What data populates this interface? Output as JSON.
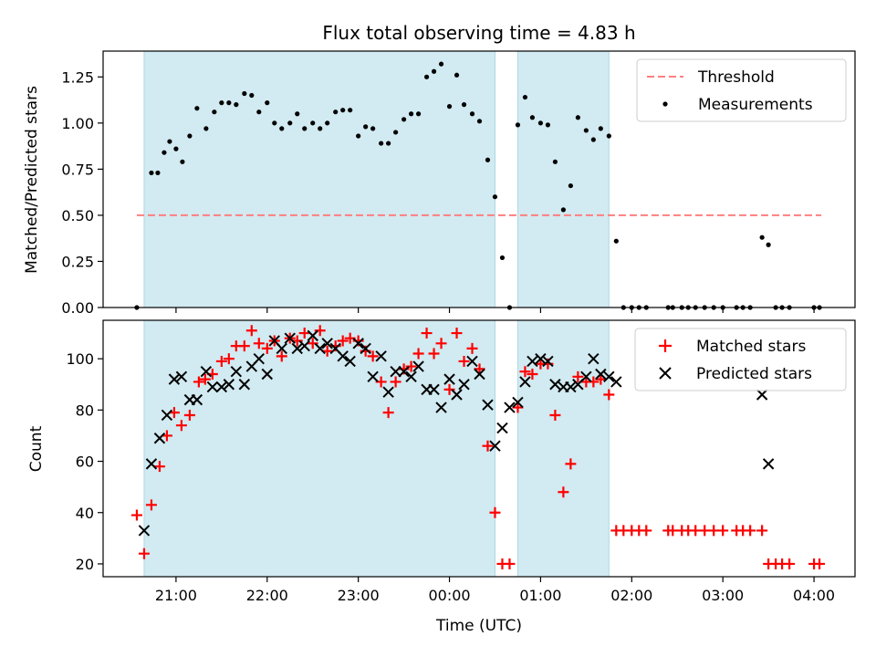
{
  "chart_data": [
    {
      "type": "scatter",
      "title": "Flux total observing time = 4.83 h",
      "xlabel": "",
      "ylabel": "Matched/Predicted stars",
      "ylim": [
        0,
        1.39
      ],
      "yticks": [
        0,
        0.25,
        0.5,
        0.75,
        1.0,
        1.25
      ],
      "ytick_labels": [
        "0.00",
        "0.25",
        "0.50",
        "0.75",
        "1.00",
        "1.25"
      ],
      "x_unit": "hours since 20:00 UTC",
      "xlim": [
        0.2,
        8.45
      ],
      "legend_position": "upper right",
      "shaded_intervals": [
        [
          0.65,
          4.5
        ],
        [
          4.75,
          5.75
        ]
      ],
      "shade_color": "#add8e6",
      "threshold": {
        "name": "Threshold",
        "y": 0.5,
        "x_range": [
          0.57,
          8.08
        ],
        "color": "#ff7f7f"
      },
      "series": [
        {
          "name": "Measurements",
          "color": "#000000",
          "x": [
            0.57,
            0.73,
            0.8,
            0.87,
            0.93,
            1.0,
            1.07,
            1.15,
            1.23,
            1.33,
            1.42,
            1.5,
            1.58,
            1.66,
            1.75,
            1.83,
            1.91,
            2.0,
            2.08,
            2.16,
            2.25,
            2.33,
            2.41,
            2.5,
            2.58,
            2.66,
            2.75,
            2.83,
            2.91,
            3.0,
            3.08,
            3.16,
            3.25,
            3.33,
            3.41,
            3.5,
            3.58,
            3.66,
            3.75,
            3.83,
            3.91,
            4.0,
            4.08,
            4.16,
            4.25,
            4.33,
            4.42,
            4.5,
            4.58,
            4.66,
            4.75,
            4.83,
            4.91,
            5.0,
            5.08,
            5.16,
            5.25,
            5.33,
            5.41,
            5.5,
            5.58,
            5.66,
            5.75,
            5.83,
            5.91,
            6.0,
            6.08,
            6.16,
            6.4,
            6.45,
            6.55,
            6.62,
            6.7,
            6.8,
            6.9,
            7.0,
            7.15,
            7.22,
            7.3,
            7.43,
            7.5,
            7.58,
            7.65,
            7.73,
            8.0,
            8.06
          ],
          "y": [
            0.0,
            0.73,
            0.73,
            0.84,
            0.9,
            0.86,
            0.79,
            0.93,
            1.08,
            0.97,
            1.06,
            1.11,
            1.11,
            1.1,
            1.16,
            1.15,
            1.06,
            1.11,
            1.0,
            0.97,
            1.0,
            1.05,
            0.97,
            1.0,
            0.97,
            1.0,
            1.06,
            1.07,
            1.07,
            0.93,
            0.98,
            0.97,
            0.89,
            0.89,
            0.95,
            1.02,
            1.05,
            1.05,
            1.25,
            1.28,
            1.32,
            1.09,
            1.26,
            1.1,
            1.05,
            1.01,
            0.8,
            0.6,
            0.27,
            0.0,
            0.99,
            1.14,
            1.03,
            1.0,
            0.99,
            0.79,
            0.53,
            0.66,
            1.03,
            0.96,
            0.91,
            0.97,
            0.93,
            0.36,
            0.0,
            0.0,
            0.0,
            0.0,
            0.0,
            0.0,
            0.0,
            0.0,
            0.0,
            0.0,
            0.0,
            0.0,
            0.0,
            0.0,
            0.0,
            0.38,
            0.34,
            0.0,
            0.0,
            0.0,
            0.0,
            0.0
          ]
        }
      ]
    },
    {
      "type": "scatter",
      "title": "",
      "xlabel": "Time (UTC)",
      "ylabel": "Count",
      "ylim": [
        15,
        115
      ],
      "yticks": [
        20,
        40,
        60,
        80,
        100
      ],
      "ytick_labels": [
        "20",
        "40",
        "60",
        "80",
        "100"
      ],
      "x_unit": "hours since 20:00 UTC",
      "xlim": [
        0.2,
        8.45
      ],
      "xticks": [
        1,
        2,
        3,
        4,
        5,
        6,
        7,
        8
      ],
      "xtick_labels": [
        "21:00",
        "22:00",
        "23:00",
        "00:00",
        "01:00",
        "02:00",
        "03:00",
        "04:00"
      ],
      "legend_position": "upper right",
      "shaded_intervals": [
        [
          0.65,
          4.5
        ],
        [
          4.75,
          5.75
        ]
      ],
      "shade_color": "#add8e6",
      "series": [
        {
          "name": "Matched stars",
          "color": "#ff0000",
          "marker": "+",
          "x": [
            0.57,
            0.65,
            0.73,
            0.82,
            0.9,
            0.98,
            1.06,
            1.15,
            1.25,
            1.32,
            1.4,
            1.5,
            1.58,
            1.66,
            1.75,
            1.83,
            1.91,
            2.0,
            2.08,
            2.16,
            2.25,
            2.33,
            2.41,
            2.5,
            2.58,
            2.66,
            2.75,
            2.83,
            2.91,
            3.0,
            3.08,
            3.16,
            3.25,
            3.33,
            3.41,
            3.5,
            3.58,
            3.66,
            3.75,
            3.83,
            3.91,
            4.0,
            4.08,
            4.16,
            4.25,
            4.33,
            4.42,
            4.5,
            4.58,
            4.66,
            4.75,
            4.83,
            4.91,
            5.0,
            5.08,
            5.16,
            5.25,
            5.33,
            5.41,
            5.5,
            5.58,
            5.66,
            5.75,
            5.83,
            5.91,
            6.0,
            6.08,
            6.16,
            6.4,
            6.45,
            6.55,
            6.62,
            6.7,
            6.8,
            6.9,
            7.0,
            7.15,
            7.22,
            7.3,
            7.43,
            7.5,
            7.58,
            7.65,
            7.73,
            8.0,
            8.06
          ],
          "y": [
            39,
            24,
            43,
            58,
            70,
            79,
            74,
            78,
            91,
            92,
            94,
            99,
            100,
            105,
            105,
            111,
            106,
            104,
            107,
            101,
            108,
            107,
            110,
            106,
            111,
            103,
            105,
            107,
            108,
            107,
            103,
            101,
            91,
            79,
            91,
            96,
            97,
            102,
            110,
            102,
            106,
            88,
            110,
            99,
            104,
            96,
            66,
            40,
            20,
            20,
            81,
            95,
            94,
            98,
            98,
            78,
            48,
            59,
            93,
            91,
            91,
            92,
            86,
            33,
            33,
            33,
            33,
            33,
            33,
            33,
            33,
            33,
            33,
            33,
            33,
            33,
            33,
            33,
            33,
            33,
            20,
            20,
            20,
            20,
            20,
            20
          ]
        },
        {
          "name": "Predicted stars",
          "color": "#000000",
          "marker": "x",
          "x": [
            0.65,
            0.73,
            0.82,
            0.9,
            0.98,
            1.06,
            1.15,
            1.23,
            1.33,
            1.4,
            1.5,
            1.58,
            1.66,
            1.75,
            1.83,
            1.91,
            2.0,
            2.08,
            2.16,
            2.25,
            2.33,
            2.41,
            2.5,
            2.58,
            2.66,
            2.75,
            2.83,
            2.91,
            3.0,
            3.08,
            3.16,
            3.25,
            3.33,
            3.41,
            3.5,
            3.58,
            3.66,
            3.75,
            3.83,
            3.91,
            4.0,
            4.08,
            4.16,
            4.25,
            4.33,
            4.42,
            4.5,
            4.58,
            4.66,
            4.75,
            4.83,
            4.91,
            5.0,
            5.08,
            5.16,
            5.25,
            5.33,
            5.41,
            5.5,
            5.58,
            5.66,
            5.75,
            5.83,
            7.43,
            7.5
          ],
          "y": [
            33,
            59,
            69,
            78,
            92,
            93,
            84,
            84,
            95,
            89,
            89,
            90,
            95,
            90,
            97,
            100,
            94,
            107,
            104,
            108,
            104,
            105,
            109,
            104,
            106,
            104,
            101,
            99,
            106,
            104,
            93,
            101,
            87,
            95,
            95,
            93,
            97,
            88,
            88,
            81,
            92,
            86,
            90,
            99,
            94,
            82,
            66,
            73,
            81,
            83,
            91,
            99,
            100,
            99,
            90,
            89,
            89,
            90,
            93,
            100,
            94,
            93,
            91,
            86,
            59
          ]
        }
      ]
    }
  ]
}
